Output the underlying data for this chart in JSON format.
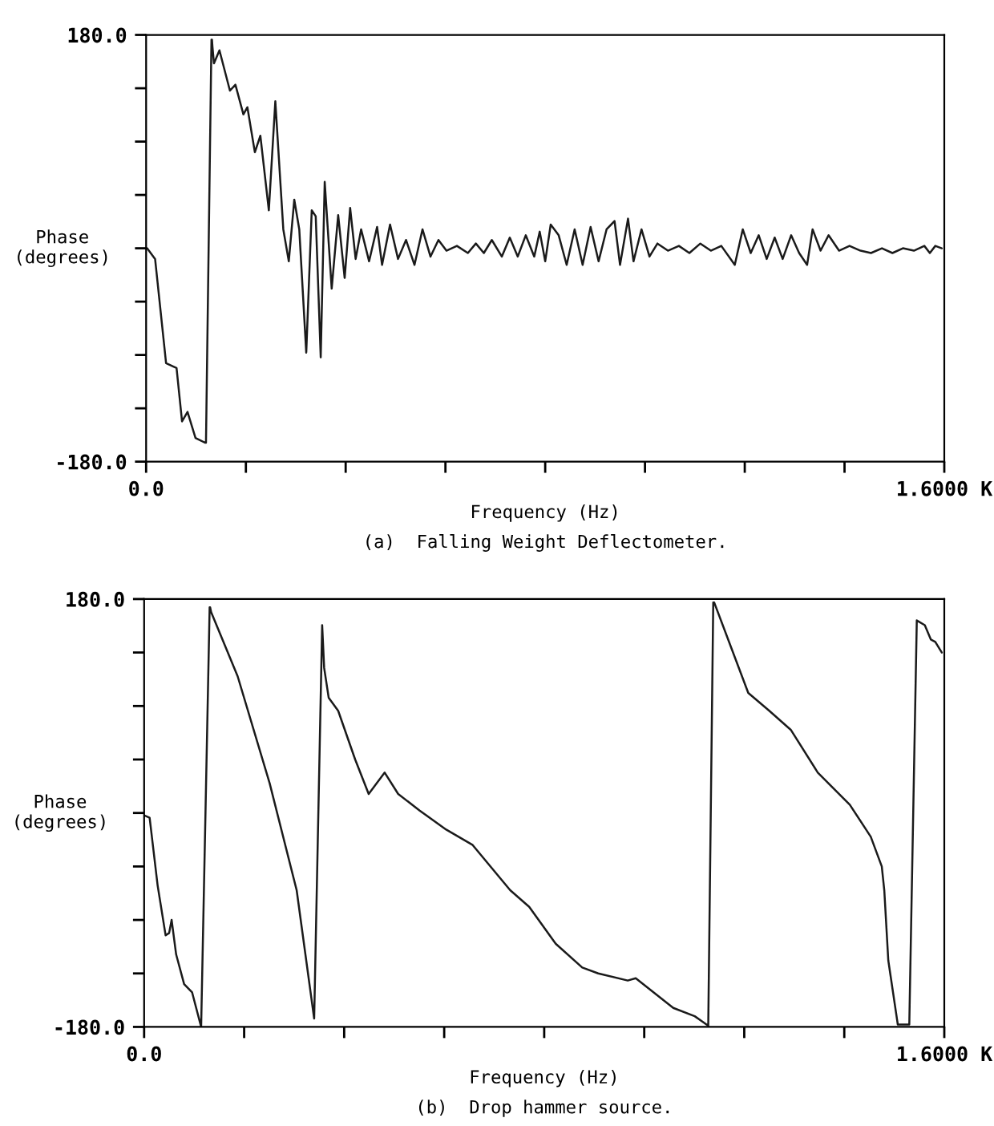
{
  "chart_data": [
    {
      "type": "line",
      "xlabel": "Frequency (Hz)",
      "ylabel": "Phase\n(degrees)",
      "annotations": [
        "(a)  Falling Weight Deflectometer."
      ],
      "xlim": [
        0,
        1600
      ],
      "ylim": [
        -180,
        180
      ],
      "xticks": [
        {
          "value": 0,
          "label": "0.0"
        },
        {
          "value": 200,
          "label": null
        },
        {
          "value": 400,
          "label": null
        },
        {
          "value": 600,
          "label": null
        },
        {
          "value": 800,
          "label": null
        },
        {
          "value": 1000,
          "label": null
        },
        {
          "value": 1200,
          "label": null
        },
        {
          "value": 1400,
          "label": null
        },
        {
          "value": 1600,
          "label": "1.6000 K"
        }
      ],
      "yticks": [
        {
          "value": -180,
          "label": "-180.0"
        },
        {
          "value": -135,
          "label": null
        },
        {
          "value": -90,
          "label": null
        },
        {
          "value": -45,
          "label": null
        },
        {
          "value": 0,
          "label": null
        },
        {
          "value": 45,
          "label": null
        },
        {
          "value": 90,
          "label": null
        },
        {
          "value": 135,
          "label": null
        },
        {
          "value": 180,
          "label": "180.0"
        }
      ],
      "grid": false,
      "legend": false,
      "line_style": "solid",
      "marker": "none",
      "series": [
        {
          "color": "#1a1a1a",
          "x": [
            2,
            18,
            40,
            61,
            72,
            83,
            99,
            118,
            120,
            131,
            132,
            133,
            136,
            147,
            168,
            179,
            195,
            203,
            218,
            229,
            246,
            259,
            275,
            286,
            297,
            307,
            321,
            332,
            340,
            350,
            358,
            372,
            385,
            398,
            409,
            420,
            431,
            447,
            463,
            473,
            489,
            505,
            521,
            538,
            554,
            570,
            586,
            602,
            623,
            645,
            661,
            677,
            693,
            713,
            729,
            745,
            761,
            778,
            789,
            800,
            811,
            827,
            843,
            859,
            875,
            891,
            907,
            923,
            939,
            950,
            966,
            977,
            993,
            1009,
            1025,
            1046,
            1068,
            1089,
            1111,
            1132,
            1153,
            1180,
            1196,
            1212,
            1228,
            1244,
            1260,
            1276,
            1293,
            1309,
            1325,
            1336,
            1352,
            1368,
            1389,
            1410,
            1432,
            1453,
            1475,
            1496,
            1517,
            1539,
            1560,
            1571,
            1582,
            1595
          ],
          "values": [
            0,
            -9,
            -97,
            -101,
            -146,
            -138,
            -160,
            -164,
            -164,
            176,
            176,
            170,
            156,
            167,
            133,
            138,
            113,
            119,
            81,
            95,
            32,
            124,
            16,
            -11,
            41,
            16,
            -88,
            32,
            27,
            -92,
            56,
            -34,
            28,
            -25,
            34,
            -9,
            16,
            -11,
            18,
            -14,
            20,
            -9,
            7,
            -14,
            16,
            -7,
            7,
            -2,
            2,
            -4,
            4,
            -4,
            7,
            -7,
            9,
            -7,
            11,
            -7,
            14,
            -11,
            20,
            11,
            -14,
            16,
            -14,
            18,
            -11,
            16,
            23,
            -14,
            25,
            -11,
            16,
            -7,
            4,
            -2,
            2,
            -4,
            4,
            -2,
            2,
            -14,
            16,
            -4,
            11,
            -9,
            9,
            -9,
            11,
            -4,
            -14,
            16,
            -2,
            11,
            -2,
            2,
            -2,
            -4,
            0,
            -4,
            0,
            -2,
            2,
            -4,
            2,
            0
          ]
        }
      ]
    },
    {
      "type": "line",
      "xlabel": "Frequency (Hz)",
      "ylabel": "Phase\n(degrees)",
      "annotations": [
        "(b)  Drop hammer source."
      ],
      "xlim": [
        0,
        1600
      ],
      "ylim": [
        -180,
        180
      ],
      "xticks": [
        {
          "value": 0,
          "label": "0.0"
        },
        {
          "value": 200,
          "label": null
        },
        {
          "value": 400,
          "label": null
        },
        {
          "value": 600,
          "label": null
        },
        {
          "value": 800,
          "label": null
        },
        {
          "value": 1000,
          "label": null
        },
        {
          "value": 1200,
          "label": null
        },
        {
          "value": 1400,
          "label": null
        },
        {
          "value": 1600,
          "label": "1.6000 K"
        }
      ],
      "yticks": [
        {
          "value": -180,
          "label": "-180.0"
        },
        {
          "value": -135,
          "label": null
        },
        {
          "value": -90,
          "label": null
        },
        {
          "value": -45,
          "label": null
        },
        {
          "value": 0,
          "label": null
        },
        {
          "value": 45,
          "label": null
        },
        {
          "value": 90,
          "label": null
        },
        {
          "value": 135,
          "label": null
        },
        {
          "value": 180,
          "label": "180.0"
        }
      ],
      "grid": false,
      "legend": false,
      "line_style": "solid",
      "marker": "none",
      "series": [
        {
          "color": "#1a1a1a",
          "x": [
            0,
            11,
            27,
            43,
            50,
            55,
            64,
            80,
            96,
            114,
            131,
            132,
            134,
            187,
            251,
            305,
            340,
            356,
            360,
            369,
            388,
            422,
            449,
            481,
            508,
            551,
            604,
            657,
            732,
            770,
            823,
            876,
            908,
            967,
            983,
            1058,
            1101,
            1128,
            1138,
            1140,
            1208,
            1250,
            1293,
            1347,
            1411,
            1453,
            1475,
            1480,
            1488,
            1507,
            1530,
            1545,
            1561,
            1573,
            1582,
            1595
          ],
          "values": [
            -2,
            -4,
            -61,
            -103,
            -101,
            -90,
            -119,
            -144,
            -151,
            -180,
            173,
            173,
            169,
            115,
            25,
            -65,
            -173,
            158,
            122,
            97,
            86,
            45,
            16,
            34,
            16,
            2,
            -14,
            -27,
            -65,
            -79,
            -110,
            -130,
            -135,
            -141,
            -139,
            -164,
            -171,
            -179,
            177,
            177,
            101,
            86,
            70,
            34,
            7,
            -20,
            -45,
            -65,
            -124,
            -178,
            -178,
            162,
            158,
            146,
            144,
            135
          ]
        }
      ]
    }
  ]
}
